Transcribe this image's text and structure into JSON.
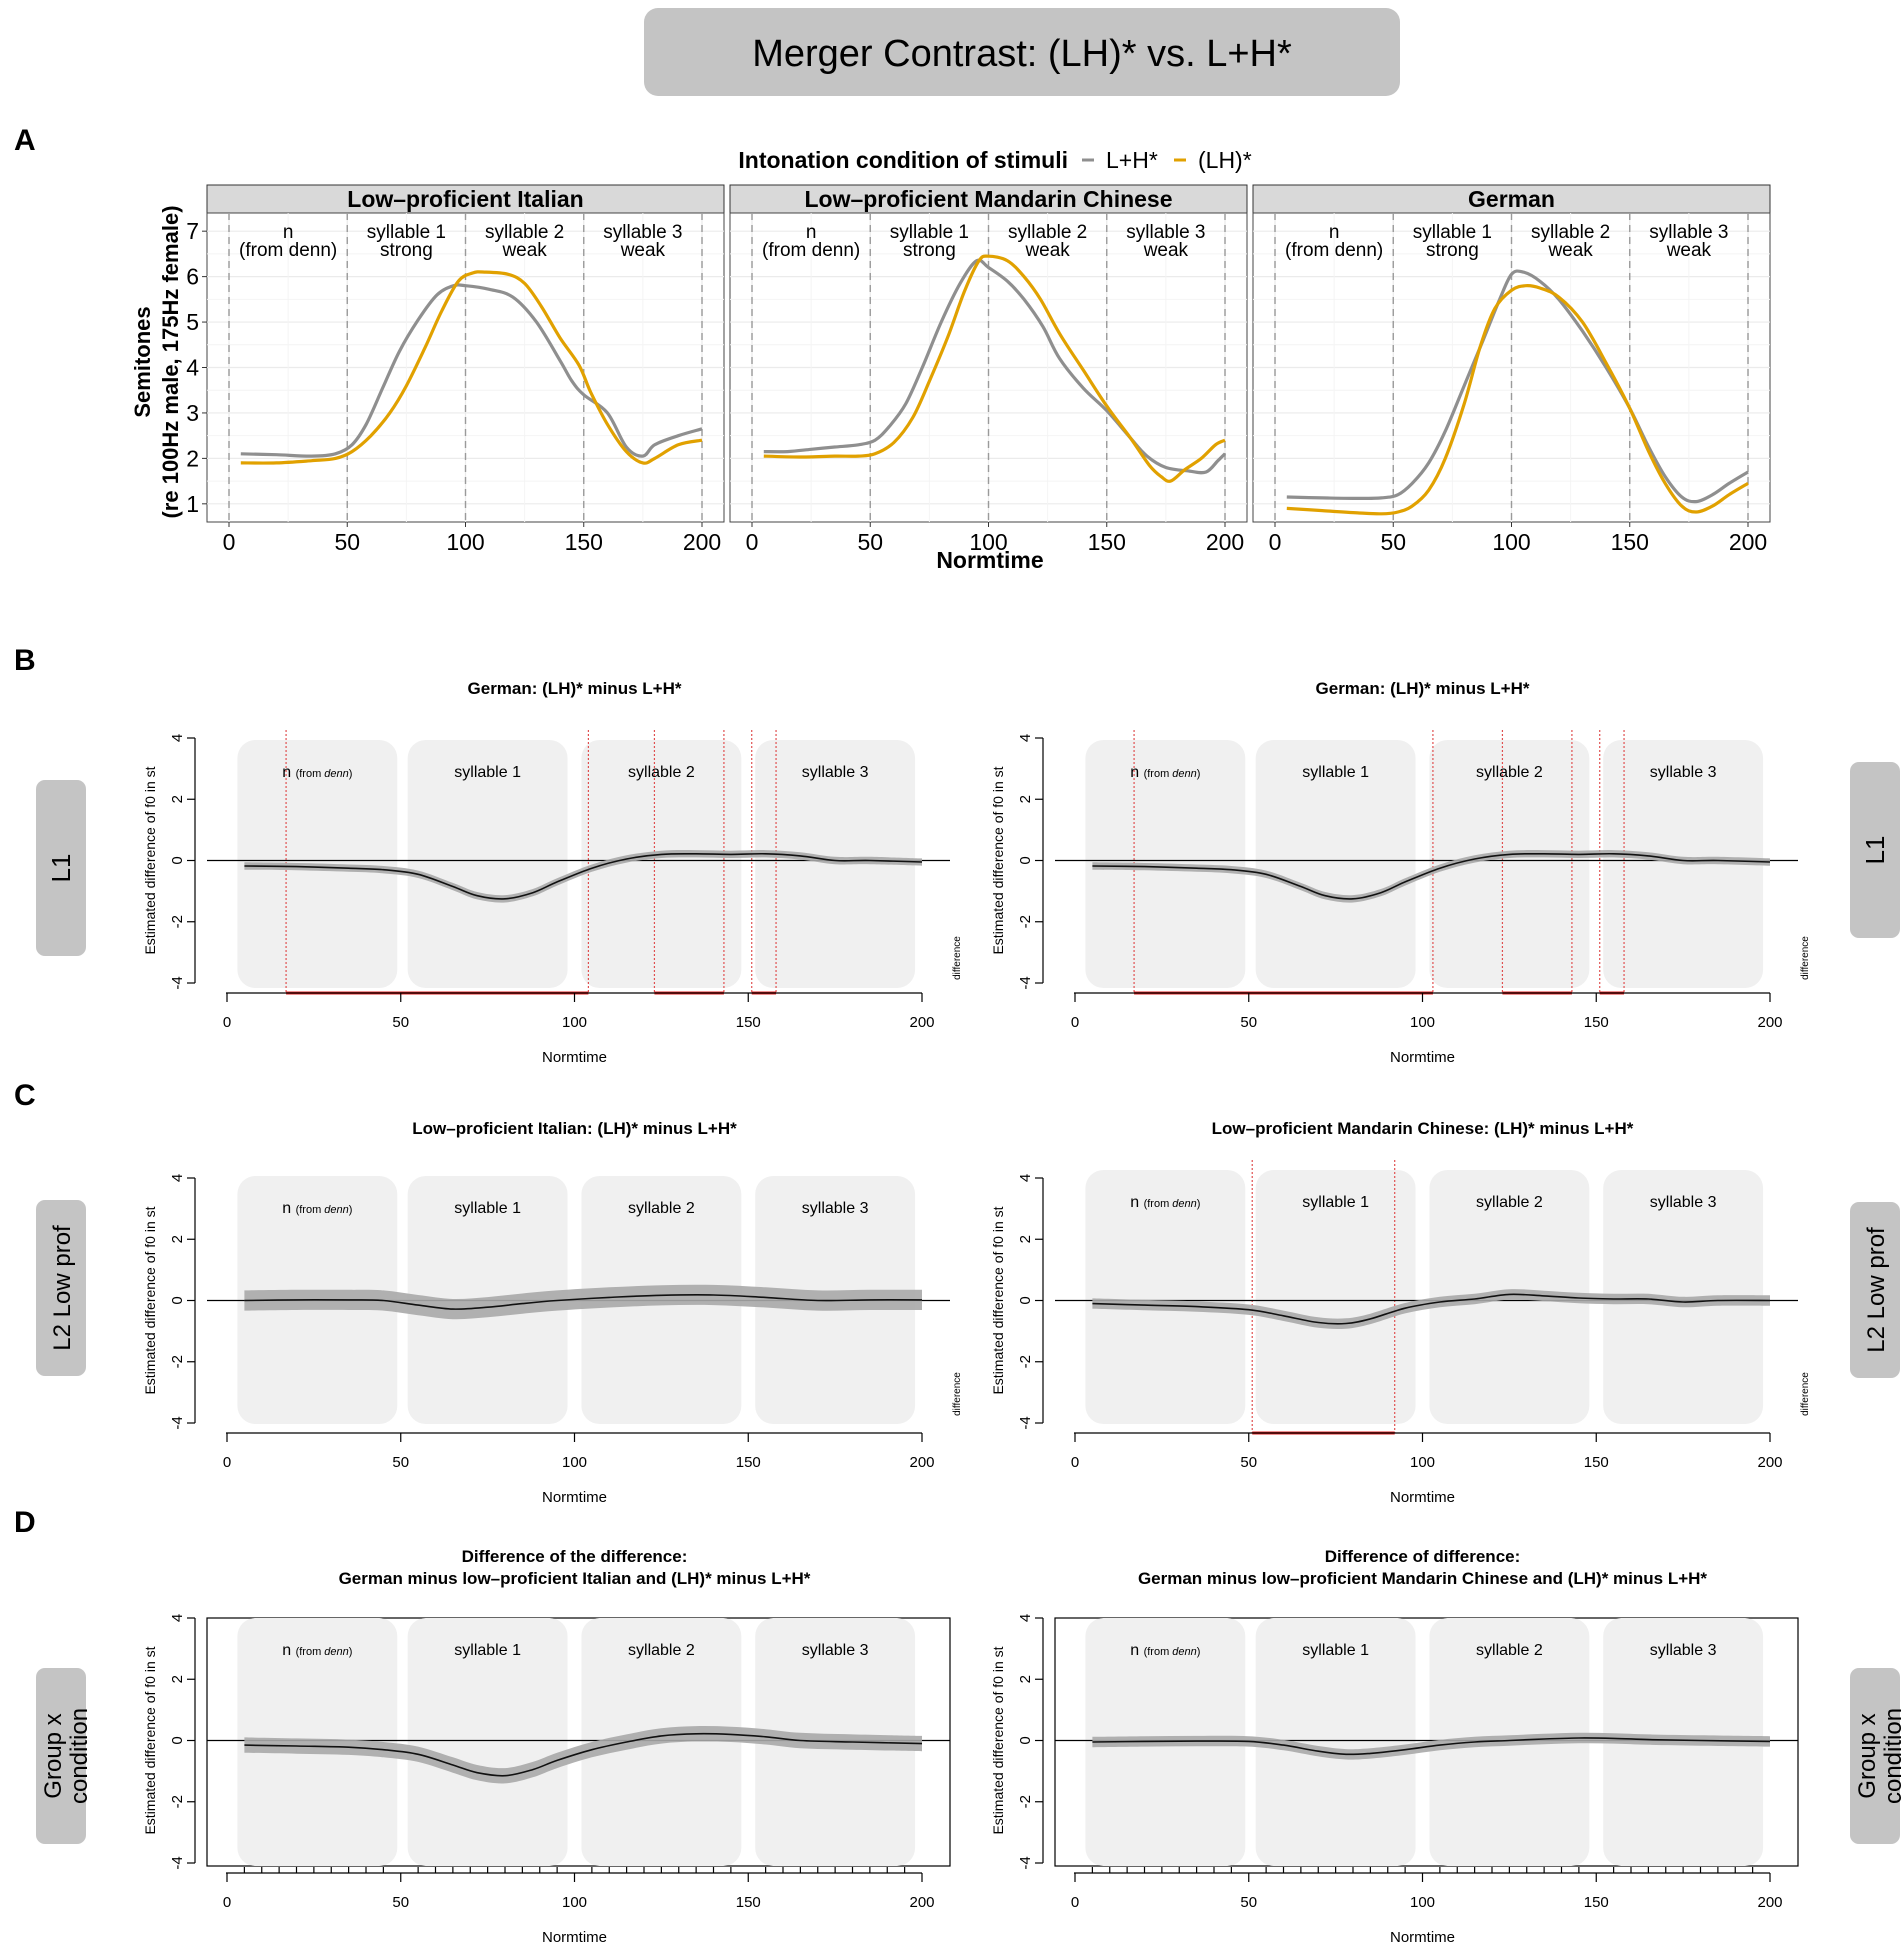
{
  "main_title": "Merger Contrast: (LH)* vs. L+H*",
  "panel_letters": [
    "A",
    "B",
    "C",
    "D"
  ],
  "panel_a": {
    "legend_title": "Intonation condition of stimuli",
    "legend_items": [
      {
        "label": "L+H*",
        "color": "#8f8f8f"
      },
      {
        "label": "(LH)*",
        "color": "#e1a100"
      }
    ],
    "ylabel_line1": "Semitones",
    "ylabel_line2": "(re 100Hz male, 175Hz female)",
    "xlabel": "Normtime",
    "segment_labels": [
      {
        "line1": "n",
        "line2": "(from denn)"
      },
      {
        "line1": "syllable 1",
        "line2": "strong"
      },
      {
        "line1": "syllable 2",
        "line2": "weak"
      },
      {
        "line1": "syllable 3",
        "line2": "weak"
      }
    ]
  },
  "side_labels": {
    "l1": "L1",
    "l2_line1": "L2 Low prof",
    "gxc_line1": "Group x",
    "gxc_line2": "condition"
  },
  "diff_common": {
    "ylabel": "Estimated difference of f0 in st",
    "xlabel": "Normtime",
    "side_text": "difference",
    "syllable_n": "n",
    "syllable_n_from": "(from ",
    "syllable_n_denn": "denn",
    "syllable_n_close": ")",
    "syllables": [
      "syllable 1",
      "syllable 2",
      "syllable 3"
    ]
  },
  "chart_data": [
    {
      "id": "a1",
      "type": "line",
      "title": "Low–proficient Italian",
      "xlim": [
        0,
        200
      ],
      "ylim": [
        0.6,
        7.4
      ],
      "xticks": [
        0,
        50,
        100,
        150,
        200
      ],
      "yticks": [
        1,
        2,
        3,
        4,
        5,
        6,
        7
      ],
      "boundaries": [
        0,
        50,
        100,
        150,
        200
      ],
      "series": [
        {
          "name": "L+H*",
          "color": "#8f8f8f",
          "x": [
            5,
            20,
            35,
            45,
            52,
            58,
            65,
            72,
            80,
            88,
            95,
            100,
            110,
            120,
            130,
            140,
            145,
            150,
            160,
            168,
            175,
            180,
            190,
            200
          ],
          "y": [
            2.1,
            2.08,
            2.05,
            2.1,
            2.3,
            2.75,
            3.55,
            4.35,
            5.05,
            5.6,
            5.8,
            5.8,
            5.72,
            5.55,
            5.0,
            4.15,
            3.7,
            3.4,
            3.0,
            2.25,
            2.05,
            2.3,
            2.5,
            2.65
          ]
        },
        {
          "name": "(LH)*",
          "color": "#e1a100",
          "x": [
            5,
            20,
            35,
            45,
            52,
            60,
            68,
            75,
            83,
            90,
            97,
            103,
            108,
            118,
            125,
            132,
            140,
            148,
            153,
            160,
            168,
            175,
            180,
            190,
            200
          ],
          "y": [
            1.9,
            1.9,
            1.95,
            2.0,
            2.15,
            2.5,
            3.0,
            3.6,
            4.45,
            5.25,
            5.9,
            6.08,
            6.1,
            6.05,
            5.85,
            5.35,
            4.65,
            4.05,
            3.45,
            2.75,
            2.15,
            1.9,
            2.0,
            2.3,
            2.4
          ]
        }
      ]
    },
    {
      "id": "a2",
      "type": "line",
      "title": "Low–proficient Mandarin Chinese",
      "xlim": [
        0,
        200
      ],
      "ylim": [
        0.6,
        7.4
      ],
      "xticks": [
        0,
        50,
        100,
        150,
        200
      ],
      "yticks": [
        1,
        2,
        3,
        4,
        5,
        6,
        7
      ],
      "boundaries": [
        0,
        50,
        100,
        150,
        200
      ],
      "series": [
        {
          "name": "L+H*",
          "color": "#8f8f8f",
          "x": [
            5,
            15,
            25,
            35,
            45,
            52,
            58,
            65,
            72,
            80,
            88,
            95,
            100,
            108,
            115,
            123,
            130,
            140,
            150,
            160,
            167,
            175,
            185,
            192,
            197,
            200
          ],
          "y": [
            2.15,
            2.15,
            2.2,
            2.25,
            2.3,
            2.4,
            2.7,
            3.2,
            4.0,
            5.0,
            5.85,
            6.35,
            6.2,
            5.9,
            5.5,
            4.9,
            4.2,
            3.55,
            3.05,
            2.45,
            2.05,
            1.8,
            1.72,
            1.7,
            1.95,
            2.1
          ]
        },
        {
          "name": "(LH)*",
          "color": "#e1a100",
          "x": [
            5,
            20,
            35,
            45,
            52,
            60,
            68,
            75,
            83,
            90,
            96,
            100,
            108,
            115,
            122,
            130,
            140,
            150,
            160,
            168,
            173,
            177,
            183,
            190,
            196,
            200
          ],
          "y": [
            2.05,
            2.03,
            2.05,
            2.05,
            2.1,
            2.35,
            2.9,
            3.7,
            4.7,
            5.7,
            6.35,
            6.45,
            6.35,
            6.0,
            5.5,
            4.75,
            3.95,
            3.15,
            2.45,
            1.85,
            1.6,
            1.5,
            1.75,
            2.0,
            2.3,
            2.4
          ]
        }
      ]
    },
    {
      "id": "a3",
      "type": "line",
      "title": "German",
      "xlim": [
        0,
        200
      ],
      "ylim": [
        0.6,
        7.4
      ],
      "xticks": [
        0,
        50,
        100,
        150,
        200
      ],
      "yticks": [
        1,
        2,
        3,
        4,
        5,
        6,
        7
      ],
      "boundaries": [
        0,
        50,
        100,
        150,
        200
      ],
      "series": [
        {
          "name": "L+H*",
          "color": "#8f8f8f",
          "x": [
            5,
            20,
            35,
            45,
            52,
            58,
            65,
            72,
            80,
            88,
            95,
            100,
            105,
            112,
            120,
            130,
            140,
            150,
            158,
            165,
            172,
            178,
            185,
            192,
            200
          ],
          "y": [
            1.15,
            1.13,
            1.12,
            1.13,
            1.2,
            1.45,
            1.9,
            2.6,
            3.6,
            4.6,
            5.5,
            6.05,
            6.1,
            5.9,
            5.5,
            4.8,
            4.0,
            3.1,
            2.25,
            1.6,
            1.15,
            1.05,
            1.2,
            1.45,
            1.7
          ]
        },
        {
          "name": "(LH)*",
          "color": "#e1a100",
          "x": [
            5,
            20,
            35,
            45,
            52,
            58,
            65,
            72,
            80,
            87,
            93,
            100,
            106,
            112,
            120,
            130,
            140,
            150,
            158,
            165,
            172,
            178,
            185,
            192,
            200
          ],
          "y": [
            0.9,
            0.85,
            0.8,
            0.78,
            0.82,
            0.95,
            1.3,
            2.0,
            3.2,
            4.5,
            5.3,
            5.7,
            5.8,
            5.75,
            5.55,
            5.0,
            4.1,
            3.1,
            2.15,
            1.45,
            0.95,
            0.82,
            0.95,
            1.2,
            1.45
          ]
        }
      ]
    },
    {
      "id": "b1",
      "type": "area",
      "title": "German: (LH)* minus L+H*",
      "xlim": [
        0,
        200
      ],
      "ylim": [
        -4,
        4
      ],
      "xticks": [
        0,
        50,
        100,
        150,
        200
      ],
      "yticks": [
        -4,
        -2,
        0,
        2,
        4
      ],
      "boxed": false,
      "x": [
        5,
        20,
        35,
        45,
        55,
        65,
        72,
        80,
        88,
        95,
        105,
        115,
        125,
        135,
        145,
        155,
        165,
        175,
        185,
        200
      ],
      "y": [
        -0.18,
        -0.2,
        -0.25,
        -0.3,
        -0.45,
        -0.85,
        -1.15,
        -1.25,
        -1.05,
        -0.7,
        -0.25,
        0.05,
        0.2,
        0.22,
        0.2,
        0.22,
        0.15,
        0.0,
        0.0,
        -0.05
      ],
      "band": 0.12,
      "significant_intervals": [
        [
          17,
          104
        ],
        [
          123,
          143
        ],
        [
          151,
          158
        ]
      ]
    },
    {
      "id": "b2",
      "type": "area",
      "title": "German: (LH)* minus L+H*",
      "xlim": [
        0,
        200
      ],
      "ylim": [
        -4,
        4
      ],
      "xticks": [
        0,
        50,
        100,
        150,
        200
      ],
      "yticks": [
        -4,
        -2,
        0,
        2,
        4
      ],
      "boxed": false,
      "x": [
        5,
        20,
        35,
        45,
        55,
        65,
        72,
        80,
        88,
        95,
        105,
        115,
        125,
        135,
        145,
        155,
        165,
        175,
        185,
        200
      ],
      "y": [
        -0.18,
        -0.2,
        -0.25,
        -0.3,
        -0.45,
        -0.85,
        -1.15,
        -1.25,
        -1.05,
        -0.7,
        -0.25,
        0.05,
        0.2,
        0.22,
        0.2,
        0.22,
        0.15,
        0.0,
        0.0,
        -0.05
      ],
      "band": 0.12,
      "significant_intervals": [
        [
          17,
          103
        ],
        [
          123,
          143
        ],
        [
          151,
          158
        ]
      ]
    },
    {
      "id": "c1",
      "type": "area",
      "title": "Low–proficient Italian: (LH)* minus L+H*",
      "xlim": [
        0,
        200
      ],
      "ylim": [
        -4,
        4
      ],
      "xticks": [
        0,
        50,
        100,
        150,
        200
      ],
      "yticks": [
        -4,
        -2,
        0,
        2,
        4
      ],
      "boxed": false,
      "x": [
        5,
        20,
        35,
        45,
        55,
        65,
        75,
        85,
        95,
        110,
        125,
        140,
        155,
        170,
        185,
        200
      ],
      "y": [
        0.0,
        0.02,
        0.02,
        0.0,
        -0.15,
        -0.28,
        -0.22,
        -0.1,
        0.0,
        0.1,
        0.17,
        0.18,
        0.1,
        0.0,
        0.02,
        0.02
      ],
      "band": 0.33,
      "significant_intervals": []
    },
    {
      "id": "c2",
      "type": "area",
      "title": "Low–proficient Mandarin Chinese: (LH)* minus L+H*",
      "xlim": [
        0,
        200
      ],
      "ylim": [
        -4,
        4
      ],
      "xticks": [
        0,
        50,
        100,
        150,
        200
      ],
      "yticks": [
        -4,
        -2,
        0,
        2,
        4
      ],
      "boxed": false,
      "x": [
        5,
        20,
        35,
        50,
        60,
        70,
        78,
        85,
        95,
        105,
        115,
        125,
        135,
        145,
        155,
        165,
        175,
        185,
        200
      ],
      "y": [
        -0.1,
        -0.15,
        -0.2,
        -0.3,
        -0.5,
        -0.72,
        -0.75,
        -0.6,
        -0.25,
        -0.05,
        0.05,
        0.2,
        0.15,
        0.08,
        0.05,
        0.05,
        -0.05,
        0.0,
        0.0
      ],
      "band": 0.17,
      "significant_intervals": [
        [
          51,
          92
        ]
      ]
    },
    {
      "id": "d1",
      "type": "area",
      "title": "Difference of the difference:",
      "subtitle": "German minus low–proficient Italian and (LH)* minus L+H*",
      "xlim": [
        0,
        200
      ],
      "ylim": [
        -4,
        4
      ],
      "xticks": [
        0,
        50,
        100,
        150,
        200
      ],
      "yticks": [
        -4,
        -2,
        0,
        2,
        4
      ],
      "boxed": true,
      "x": [
        5,
        20,
        35,
        45,
        55,
        65,
        72,
        80,
        88,
        95,
        105,
        115,
        125,
        135,
        145,
        155,
        165,
        180,
        200
      ],
      "y": [
        -0.15,
        -0.18,
        -0.22,
        -0.3,
        -0.45,
        -0.8,
        -1.05,
        -1.15,
        -0.95,
        -0.65,
        -0.3,
        -0.05,
        0.15,
        0.22,
        0.2,
        0.12,
        0.0,
        -0.05,
        -0.1
      ],
      "band": 0.25,
      "significant_intervals": []
    },
    {
      "id": "d2",
      "type": "area",
      "title": "Difference of difference:",
      "subtitle": "German minus low–proficient Mandarin Chinese and (LH)* minus L+H*",
      "xlim": [
        0,
        200
      ],
      "ylim": [
        -4,
        4
      ],
      "xticks": [
        0,
        50,
        100,
        150,
        200
      ],
      "yticks": [
        -4,
        -2,
        0,
        2,
        4
      ],
      "boxed": true,
      "x": [
        5,
        20,
        35,
        50,
        60,
        70,
        78,
        85,
        95,
        105,
        115,
        125,
        135,
        145,
        155,
        165,
        180,
        200
      ],
      "y": [
        -0.05,
        -0.03,
        -0.02,
        -0.03,
        -0.15,
        -0.35,
        -0.45,
        -0.42,
        -0.3,
        -0.15,
        -0.05,
        0.0,
        0.05,
        0.08,
        0.07,
        0.03,
        0.0,
        -0.03
      ],
      "band": 0.17,
      "significant_intervals": []
    }
  ]
}
